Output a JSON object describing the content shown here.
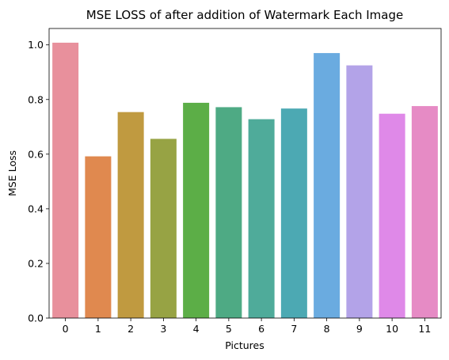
{
  "chart_data": {
    "type": "bar",
    "title": "MSE LOSS of after addition of Watermark Each Image",
    "xlabel": "Pictures",
    "ylabel": "MSE Loss",
    "categories": [
      "0",
      "1",
      "2",
      "3",
      "4",
      "5",
      "6",
      "7",
      "8",
      "9",
      "10",
      "11"
    ],
    "values": [
      1.008,
      0.592,
      0.754,
      0.656,
      0.788,
      0.772,
      0.728,
      0.767,
      0.97,
      0.925,
      0.748,
      0.776
    ],
    "ylim": [
      0,
      1.06
    ],
    "yticks": [
      "0.0",
      "0.2",
      "0.4",
      "0.6",
      "0.8",
      "1.0"
    ],
    "grid": false,
    "colors": [
      "#e8909c",
      "#e0894f",
      "#c09a40",
      "#97a344",
      "#5cae47",
      "#4eaa84",
      "#4fab9a",
      "#4ca9b3",
      "#6aabe0",
      "#b3a3e8",
      "#df89e8",
      "#e68bc5"
    ]
  }
}
